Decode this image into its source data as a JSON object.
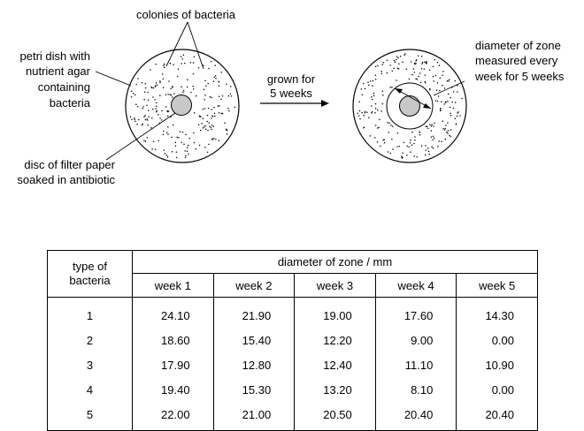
{
  "diagram": {
    "labels": {
      "colonies": "colonies of bacteria",
      "petri_dish": [
        "petri dish with",
        "nutrient agar",
        "containing",
        "bacteria"
      ],
      "disc": [
        "disc of filter paper",
        "soaked in antibiotic"
      ],
      "grown": [
        "grown for",
        "5 weeks"
      ],
      "diameter": [
        "diameter of zone",
        "measured every",
        "week for 5 weeks"
      ]
    }
  },
  "table": {
    "row_header": [
      "type of",
      "bacteria"
    ],
    "group_header": "diameter of zone / mm",
    "columns": [
      "week 1",
      "week 2",
      "week 3",
      "week 4",
      "week 5"
    ],
    "rows": [
      {
        "type": "1",
        "values": [
          "24.10",
          "21.90",
          "19.00",
          "17.60",
          "14.30"
        ]
      },
      {
        "type": "2",
        "values": [
          "18.60",
          "15.40",
          "12.20",
          "9.00",
          "0.00"
        ]
      },
      {
        "type": "3",
        "values": [
          "17.90",
          "12.80",
          "12.40",
          "11.10",
          "10.90"
        ]
      },
      {
        "type": "4",
        "values": [
          "19.40",
          "15.30",
          "13.20",
          "8.10",
          "0.00"
        ]
      },
      {
        "type": "5",
        "values": [
          "22.00",
          "21.00",
          "20.50",
          "20.40",
          "20.40"
        ]
      }
    ]
  }
}
